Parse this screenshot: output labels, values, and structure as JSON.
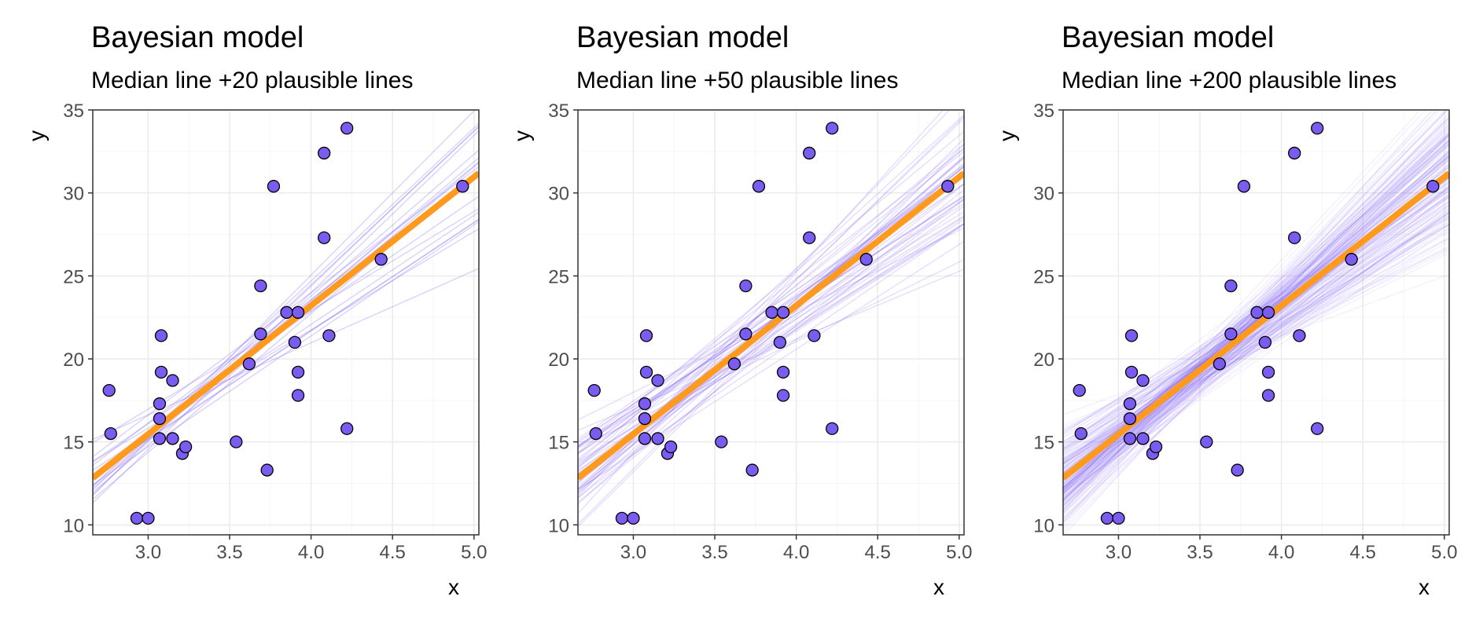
{
  "colors": {
    "point_fill": "#7b5cf0",
    "point_stroke": "#000000",
    "median_line": "#ff9a1f",
    "plausible_line": "#7b5cf0",
    "grid_major": "#ebebeb",
    "grid_minor": "#f5f5f5",
    "panel_border": "#333333",
    "tick_text": "#4d4d4d"
  },
  "chart_data": [
    {
      "type": "scatter",
      "title": "Bayesian model",
      "subtitle": "Median line +20 plausible lines",
      "xlabel": "x",
      "ylabel": "y",
      "xlim": [
        2.66,
        5.03
      ],
      "ylim": [
        9.4,
        35.0
      ],
      "x_ticks": [
        "3.0",
        "3.5",
        "4.0",
        "4.5",
        "5.0"
      ],
      "y_ticks": [
        "10",
        "15",
        "20",
        "25",
        "30",
        "35"
      ],
      "grid": true,
      "n_plausible_lines": 20,
      "seed": 11
    },
    {
      "type": "scatter",
      "title": "Bayesian model",
      "subtitle": "Median line +50 plausible lines",
      "xlabel": "x",
      "ylabel": "y",
      "xlim": [
        2.66,
        5.03
      ],
      "ylim": [
        9.4,
        35.0
      ],
      "x_ticks": [
        "3.0",
        "3.5",
        "4.0",
        "4.5",
        "5.0"
      ],
      "y_ticks": [
        "10",
        "15",
        "20",
        "25",
        "30",
        "35"
      ],
      "grid": true,
      "n_plausible_lines": 50,
      "seed": 23
    },
    {
      "type": "scatter",
      "title": "Bayesian model",
      "subtitle": "Median line +200 plausible lines",
      "xlabel": "x",
      "ylabel": "y",
      "xlim": [
        2.66,
        5.03
      ],
      "ylim": [
        9.4,
        35.0
      ],
      "x_ticks": [
        "3.0",
        "3.5",
        "4.0",
        "4.5",
        "5.0"
      ],
      "y_ticks": [
        "10",
        "15",
        "20",
        "25",
        "30",
        "35"
      ],
      "grid": true,
      "n_plausible_lines": 200,
      "seed": 37
    }
  ],
  "points": [
    {
      "x": 2.76,
      "y": 18.1
    },
    {
      "x": 2.77,
      "y": 15.5
    },
    {
      "x": 2.93,
      "y": 10.4
    },
    {
      "x": 3.0,
      "y": 10.4
    },
    {
      "x": 3.07,
      "y": 16.4
    },
    {
      "x": 3.07,
      "y": 17.3
    },
    {
      "x": 3.07,
      "y": 15.2
    },
    {
      "x": 3.08,
      "y": 21.4
    },
    {
      "x": 3.08,
      "y": 19.2
    },
    {
      "x": 3.15,
      "y": 18.7
    },
    {
      "x": 3.15,
      "y": 15.2
    },
    {
      "x": 3.21,
      "y": 14.3
    },
    {
      "x": 3.23,
      "y": 14.7
    },
    {
      "x": 3.54,
      "y": 15.0
    },
    {
      "x": 3.62,
      "y": 19.7
    },
    {
      "x": 3.69,
      "y": 21.5
    },
    {
      "x": 3.69,
      "y": 24.4
    },
    {
      "x": 3.73,
      "y": 13.3
    },
    {
      "x": 3.77,
      "y": 30.4
    },
    {
      "x": 3.85,
      "y": 22.8
    },
    {
      "x": 3.9,
      "y": 21.0
    },
    {
      "x": 3.92,
      "y": 22.8
    },
    {
      "x": 3.92,
      "y": 19.2
    },
    {
      "x": 3.92,
      "y": 17.8
    },
    {
      "x": 4.08,
      "y": 27.3
    },
    {
      "x": 4.08,
      "y": 32.4
    },
    {
      "x": 4.11,
      "y": 21.4
    },
    {
      "x": 4.22,
      "y": 33.9
    },
    {
      "x": 4.22,
      "y": 15.8
    },
    {
      "x": 4.43,
      "y": 26.0
    },
    {
      "x": 4.93,
      "y": 30.4
    }
  ],
  "median_line": {
    "intercept": -7.79,
    "slope": 7.75
  }
}
